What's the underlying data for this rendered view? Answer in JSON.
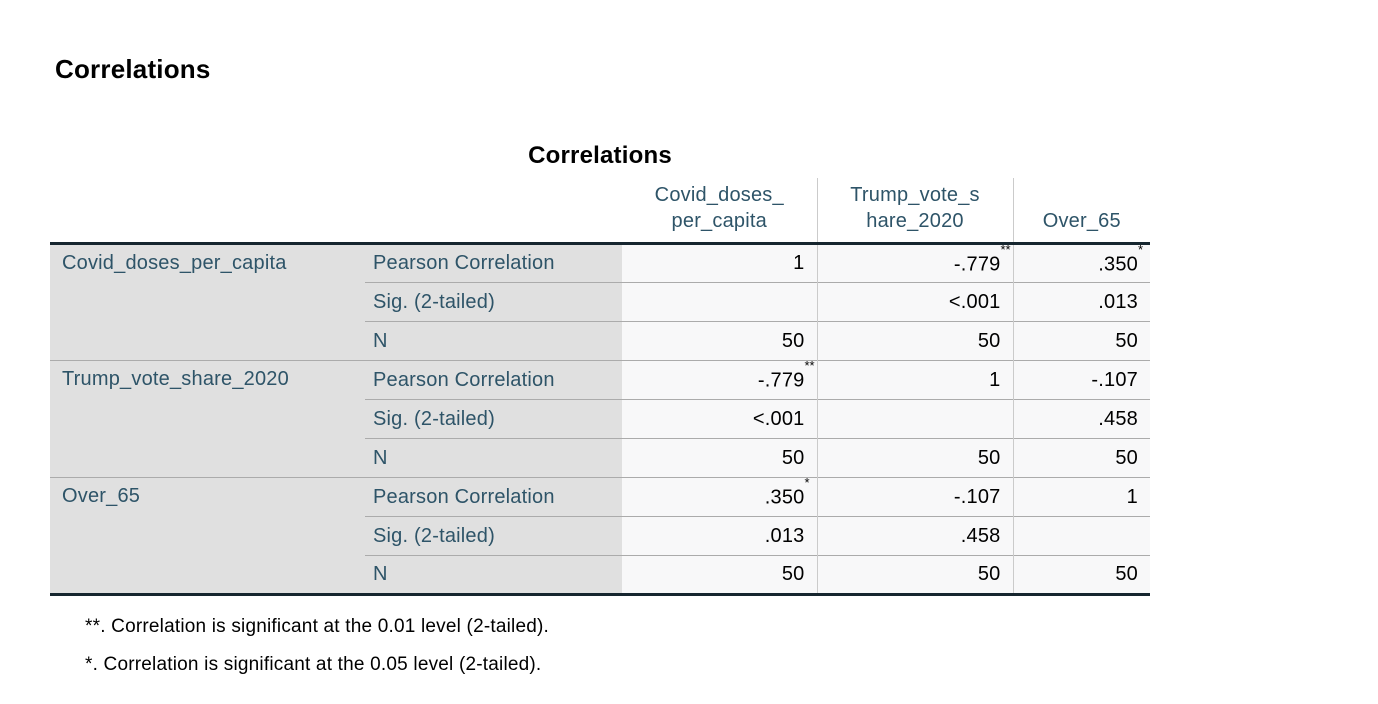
{
  "page": {
    "heading": "Correlations"
  },
  "table": {
    "title": "Correlations",
    "col_headers": [
      {
        "lines": [
          "Covid_doses_",
          "per_capita"
        ]
      },
      {
        "lines": [
          "Trump_vote_s",
          "hare_2020"
        ]
      },
      {
        "lines": [
          "Over_65"
        ]
      }
    ],
    "groups": [
      {
        "label": "Covid_doses_per_capita",
        "rows": [
          {
            "stat": "Pearson Correlation",
            "cells": [
              {
                "v": "1",
                "s": ""
              },
              {
                "v": "-.779",
                "s": "**"
              },
              {
                "v": ".350",
                "s": "*"
              }
            ]
          },
          {
            "stat": "Sig. (2-tailed)",
            "cells": [
              {
                "v": "",
                "s": ""
              },
              {
                "v": "<.001",
                "s": ""
              },
              {
                "v": ".013",
                "s": ""
              }
            ]
          },
          {
            "stat": "N",
            "cells": [
              {
                "v": "50",
                "s": ""
              },
              {
                "v": "50",
                "s": ""
              },
              {
                "v": "50",
                "s": ""
              }
            ]
          }
        ]
      },
      {
        "label": "Trump_vote_share_2020",
        "rows": [
          {
            "stat": "Pearson Correlation",
            "cells": [
              {
                "v": "-.779",
                "s": "**"
              },
              {
                "v": "1",
                "s": ""
              },
              {
                "v": "-.107",
                "s": ""
              }
            ]
          },
          {
            "stat": "Sig. (2-tailed)",
            "cells": [
              {
                "v": "<.001",
                "s": ""
              },
              {
                "v": "",
                "s": ""
              },
              {
                "v": ".458",
                "s": ""
              }
            ]
          },
          {
            "stat": "N",
            "cells": [
              {
                "v": "50",
                "s": ""
              },
              {
                "v": "50",
                "s": ""
              },
              {
                "v": "50",
                "s": ""
              }
            ]
          }
        ]
      },
      {
        "label": "Over_65",
        "rows": [
          {
            "stat": "Pearson Correlation",
            "cells": [
              {
                "v": ".350",
                "s": "*"
              },
              {
                "v": "-.107",
                "s": ""
              },
              {
                "v": "1",
                "s": ""
              }
            ]
          },
          {
            "stat": "Sig. (2-tailed)",
            "cells": [
              {
                "v": ".013",
                "s": ""
              },
              {
                "v": ".458",
                "s": ""
              },
              {
                "v": "",
                "s": ""
              }
            ]
          },
          {
            "stat": "N",
            "cells": [
              {
                "v": "50",
                "s": ""
              },
              {
                "v": "50",
                "s": ""
              },
              {
                "v": "50",
                "s": ""
              }
            ]
          }
        ]
      }
    ],
    "footnotes": [
      "**. Correlation is significant at the 0.01 level (2-tailed).",
      "*. Correlation is significant at the 0.05 level (2-tailed)."
    ],
    "colors": {
      "header_text": "#2e5468",
      "label_background": "#e0e0e0",
      "data_background": "#f8f8f9",
      "heavy_border": "#16262f",
      "row_separator": "#ababab",
      "column_separator": "#cbcbcb"
    }
  }
}
